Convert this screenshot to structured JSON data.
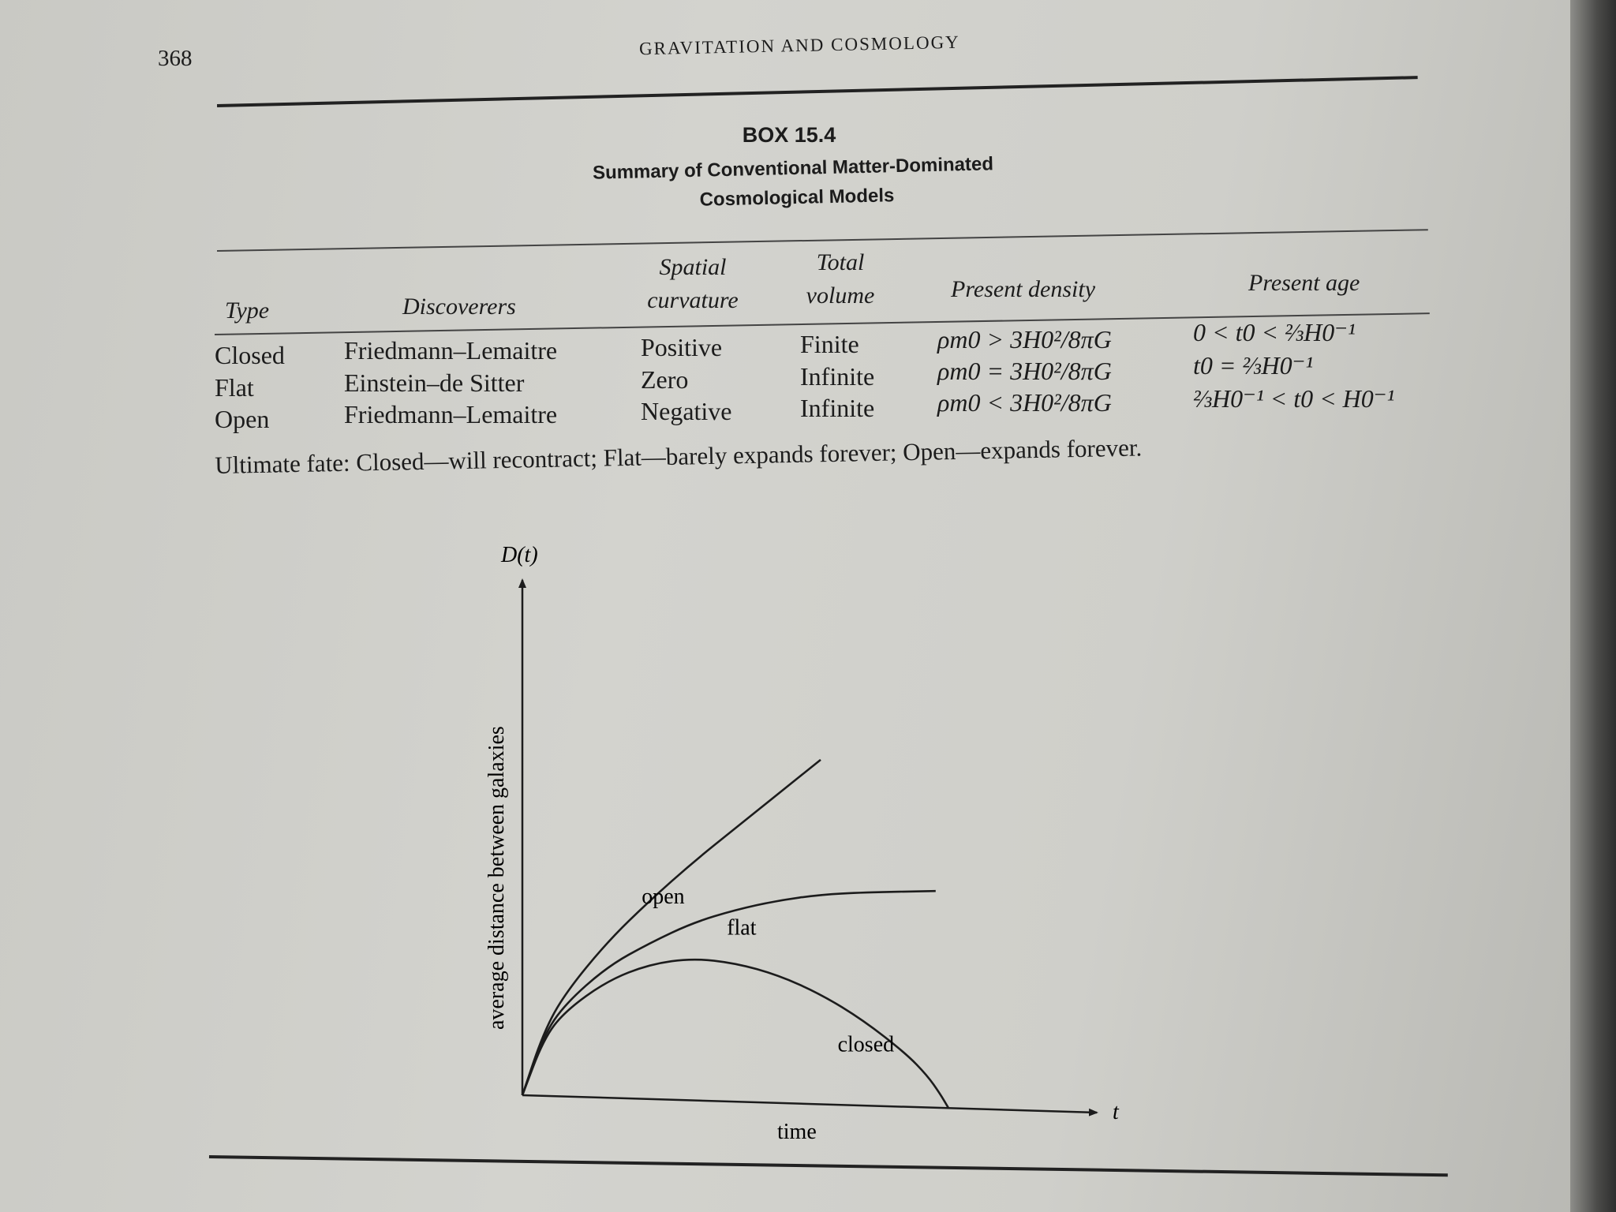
{
  "page": {
    "number": "368",
    "running_head": "GRAVITATION AND COSMOLOGY"
  },
  "box": {
    "label": "BOX 15.4",
    "title_line1": "Summary of Conventional Matter-Dominated",
    "title_line2": "Cosmological Models"
  },
  "table": {
    "headers": {
      "type": "Type",
      "discoverers": "Discoverers",
      "curvature_1": "Spatial",
      "curvature_2": "curvature",
      "volume_1": "Total",
      "volume_2": "volume",
      "density": "Present density",
      "age": "Present age"
    },
    "rows": [
      {
        "type": "Closed",
        "discoverers": "Friedmann–Lemaitre",
        "curvature": "Positive",
        "volume": "Finite",
        "density": "ρm0 > 3H0²/8πG",
        "age": "0 < t0 < ⅔H0⁻¹"
      },
      {
        "type": "Flat",
        "discoverers": "Einstein–de Sitter",
        "curvature": "Zero",
        "volume": "Infinite",
        "density": "ρm0 = 3H0²/8πG",
        "age": "t0 = ⅔H0⁻¹"
      },
      {
        "type": "Open",
        "discoverers": "Friedmann–Lemaitre",
        "curvature": "Negative",
        "volume": "Infinite",
        "density": "ρm0 < 3H0²/8πG",
        "age": "⅔H0⁻¹ < t0 < H0⁻¹"
      }
    ],
    "fate": "Ultimate fate: Closed—will recontract; Flat—barely expands forever; Open—expands forever."
  },
  "chart_data": {
    "type": "line",
    "title": "",
    "xlabel": "time",
    "ylabel": "average distance between galaxies",
    "x_axis_symbol": "t",
    "y_axis_symbol": "D(t)",
    "grid": false,
    "legend": "none",
    "series": [
      {
        "name": "open",
        "x": [
          0,
          0.05,
          0.1,
          0.2,
          0.3,
          0.4,
          0.5,
          0.6,
          0.7
        ],
        "y": [
          0,
          0.18,
          0.29,
          0.44,
          0.56,
          0.67,
          0.77,
          0.87,
          0.97
        ]
      },
      {
        "name": "flat",
        "x": [
          0,
          0.05,
          0.1,
          0.2,
          0.3,
          0.4,
          0.5,
          0.6,
          0.7,
          0.8,
          0.97
        ],
        "y": [
          0,
          0.17,
          0.26,
          0.37,
          0.44,
          0.5,
          0.54,
          0.57,
          0.59,
          0.6,
          0.61
        ]
      },
      {
        "name": "closed",
        "x": [
          0,
          0.05,
          0.1,
          0.2,
          0.3,
          0.4,
          0.5,
          0.6,
          0.7,
          0.8,
          0.9,
          0.95,
          0.98,
          1.0
        ],
        "y": [
          0,
          0.16,
          0.24,
          0.33,
          0.38,
          0.4,
          0.39,
          0.36,
          0.31,
          0.24,
          0.15,
          0.09,
          0.04,
          0
        ]
      }
    ]
  }
}
